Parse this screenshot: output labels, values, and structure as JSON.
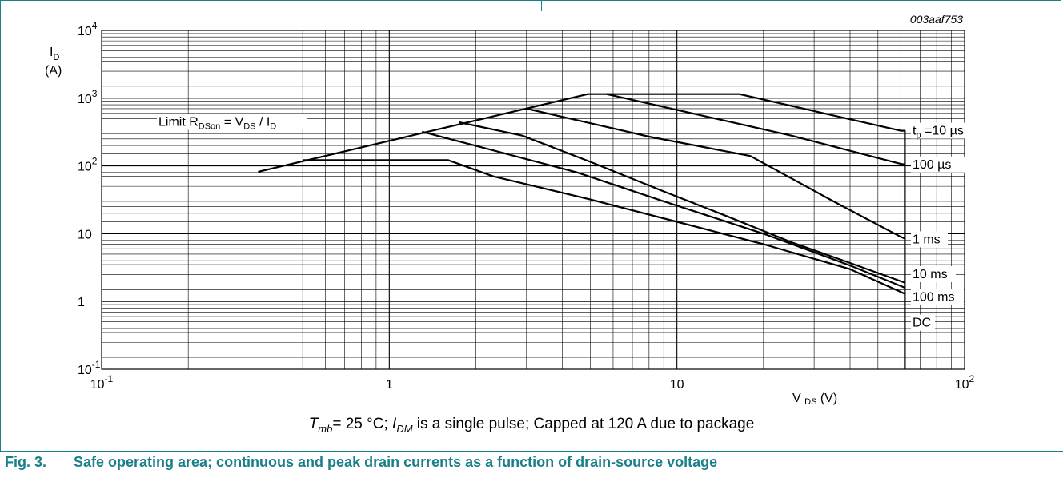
{
  "chart_data": {
    "type": "line",
    "scale": "log-log",
    "figure_id": "003aaf753",
    "xlabel": "V DS (V)",
    "ylabel": "ID (A)",
    "xlim": [
      0.1,
      100
    ],
    "ylim": [
      0.1,
      10000
    ],
    "grid": true,
    "x_tick_labels": [
      {
        "value": 0.1,
        "base": "10",
        "exp": "-1"
      },
      {
        "value": 1,
        "base": "1",
        "exp": ""
      },
      {
        "value": 10,
        "base": "10",
        "exp": ""
      },
      {
        "value": 100,
        "base": "10",
        "exp": "2"
      }
    ],
    "y_tick_labels": [
      {
        "value": 10000,
        "base": "10",
        "exp": "4"
      },
      {
        "value": 1000,
        "base": "10",
        "exp": "3"
      },
      {
        "value": 100,
        "base": "10",
        "exp": "2"
      },
      {
        "value": 10,
        "base": "10",
        "exp": ""
      },
      {
        "value": 1,
        "base": "1",
        "exp": ""
      },
      {
        "value": 0.1,
        "base": "10",
        "exp": "-1"
      }
    ],
    "limit_line": {
      "label": "Limit RDSon = VDS / ID",
      "x": [
        0.35,
        4.9
      ],
      "y": [
        82,
        1150
      ]
    },
    "series": [
      {
        "name": "tp =10 µs",
        "x": [
          4.9,
          16.5,
          60,
          60,
          62,
          62
        ],
        "y": [
          1150,
          1150,
          330,
          330,
          330,
          0.1
        ]
      },
      {
        "name": "100 µs",
        "x": [
          5.7,
          25,
          60,
          62
        ],
        "y": [
          1150,
          280,
          107,
          105
        ]
      },
      {
        "name": "1 ms",
        "x": [
          3,
          8,
          18,
          35,
          60,
          62
        ],
        "y": [
          700,
          270,
          140,
          30,
          9,
          8.5
        ]
      },
      {
        "name": "10 ms",
        "x": [
          1.75,
          2.9,
          5,
          9,
          15,
          25,
          40,
          62
        ],
        "y": [
          440,
          280,
          115,
          42,
          18,
          7.5,
          3.7,
          1.9
        ]
      },
      {
        "name": "100 ms",
        "x": [
          1.3,
          4.5,
          9,
          20,
          40,
          62
        ],
        "y": [
          320,
          80,
          30,
          10,
          3.4,
          1.6
        ]
      },
      {
        "name": "DC",
        "x": [
          0.5,
          1.6,
          2.3,
          5,
          10,
          20,
          40,
          62
        ],
        "y": [
          122,
          122,
          70,
          32,
          15,
          7,
          3,
          1.3
        ]
      }
    ]
  },
  "caption": {
    "t": "T",
    "t_sub": "mb",
    "eq": "= 25 °C; ",
    "i": "I",
    "i_sub": "DM",
    "rest": " is a single pulse; Capped at 120 A due to package"
  },
  "figure": {
    "label": "Fig. 3.",
    "title": "Safe operating area; continuous and peak drain currents as a function of drain-source voltage"
  },
  "colors": {
    "accent": "#1a7f8a",
    "line": "#000000",
    "grid": "#000000"
  }
}
